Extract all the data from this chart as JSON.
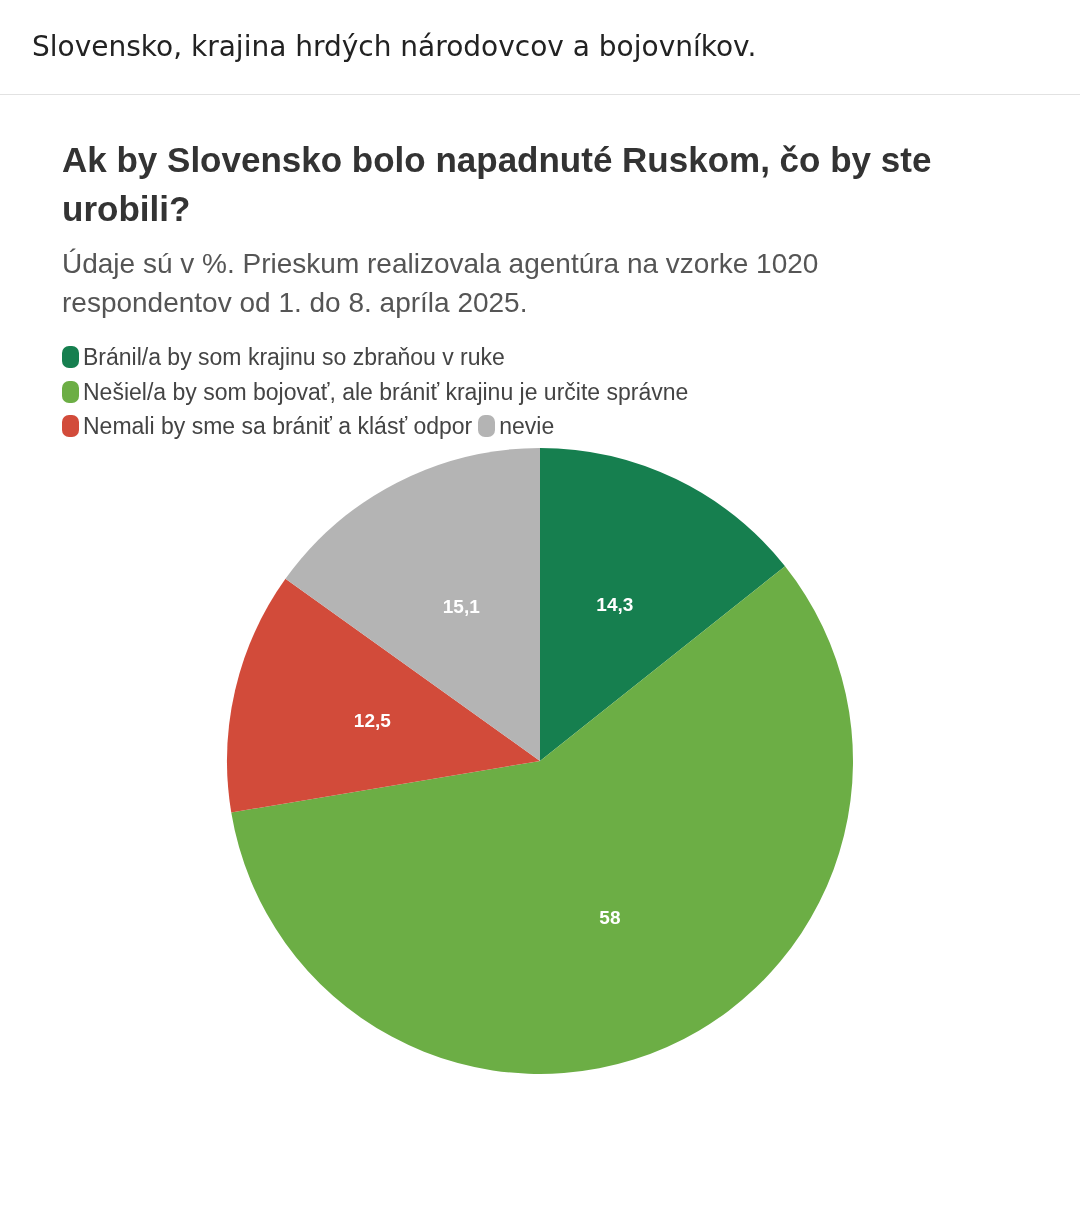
{
  "chart_data": {
    "type": "pie",
    "title": "Ak by Slovensko bolo napadnuté Ruskom, čo by ste urobili?",
    "subtitle": "Údaje sú v %. Prieskum realizovala agentúra na vzorke 1020 respondentov od 1. do 8. apríla 2025.",
    "annotations": [
      "Slovensko, krajina hrdých národovcov a bojovníkov."
    ],
    "categories": [
      "Bránil/a by som krajinu so zbraňou v ruke",
      "Nešiel/a by som bojovať, ale brániť krajinu je určite správne",
      "Nemali by sme sa brániť a klásť odpor",
      "nevie"
    ],
    "values": [
      14.3,
      58,
      12.5,
      15.1
    ],
    "value_labels": [
      "14,3",
      "58",
      "12,5",
      "15,1"
    ],
    "colors": [
      "#167f4f",
      "#6cae45",
      "#d24b3a",
      "#b4b4b4"
    ],
    "legend": "top left"
  }
}
